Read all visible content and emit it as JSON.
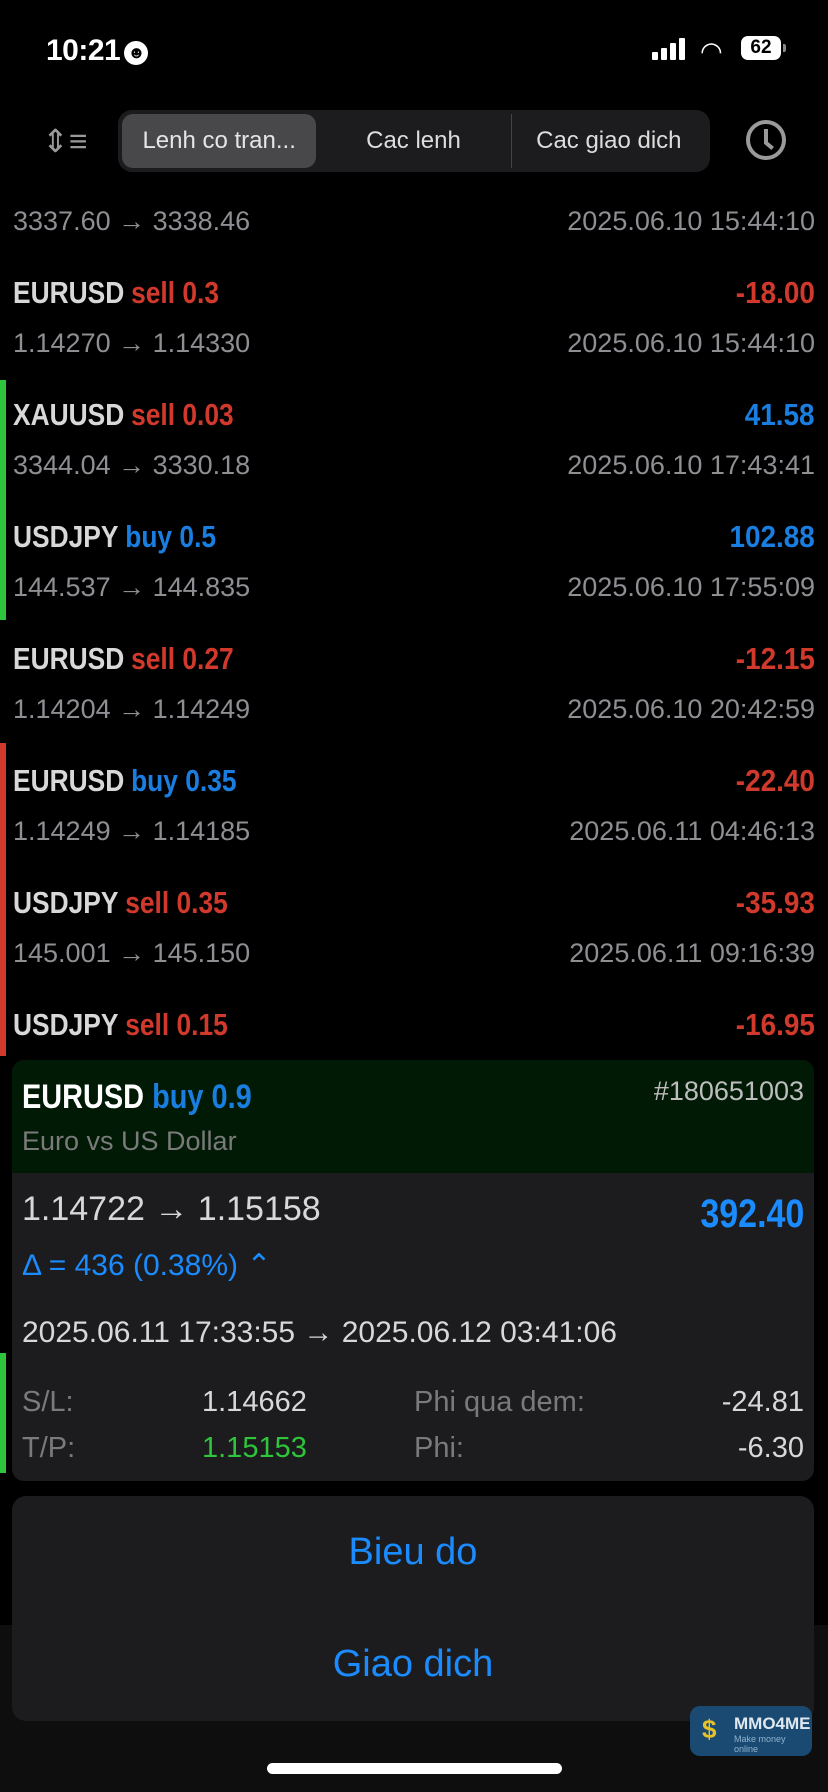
{
  "status": {
    "time": "10:21",
    "battery": "62"
  },
  "tabs": [
    {
      "label": "Lenh co tran...",
      "active": true
    },
    {
      "label": "Cac lenh"
    },
    {
      "label": "Cac giao dich"
    }
  ],
  "rows": [
    {
      "symbol": "",
      "side": "",
      "volume": "",
      "profit": "",
      "prices": "3337.60 → 3338.46",
      "time": "2025.06.10 15:44:10"
    },
    {
      "symbol": "EURUSD",
      "side": "sell",
      "volume": "0.3",
      "profit": "-18.00",
      "prices": "1.14270 → 1.14330",
      "time": "2025.06.10 15:44:10"
    },
    {
      "symbol": "XAUUSD",
      "side": "sell",
      "volume": "0.03",
      "profit": "41.58",
      "prices": "3344.04 → 3330.18",
      "time": "2025.06.10 17:43:41"
    },
    {
      "symbol": "USDJPY",
      "side": "buy",
      "volume": "0.5",
      "profit": "102.88",
      "prices": "144.537 → 144.835",
      "time": "2025.06.10 17:55:09"
    },
    {
      "symbol": "EURUSD",
      "side": "sell",
      "volume": "0.27",
      "profit": "-12.15",
      "prices": "1.14204 → 1.14249",
      "time": "2025.06.10 20:42:59"
    },
    {
      "symbol": "EURUSD",
      "side": "buy",
      "volume": "0.35",
      "profit": "-22.40",
      "prices": "1.14249 → 1.14185",
      "time": "2025.06.11 04:46:13"
    },
    {
      "symbol": "USDJPY",
      "side": "sell",
      "volume": "0.35",
      "profit": "-35.93",
      "prices": "145.001 → 145.150",
      "time": "2025.06.11 09:16:39"
    },
    {
      "symbol": "USDJPY",
      "side": "sell",
      "volume": "0.15",
      "profit": "-16.95",
      "prices": "",
      "time": ""
    }
  ],
  "detail": {
    "symbol": "EURUSD",
    "side": "buy",
    "volume": "0.9",
    "id": "#180651003",
    "description": "Euro vs US Dollar",
    "prices": "1.14722 → 1.15158",
    "profit": "392.40",
    "delta": "Δ = 436 (0.38%)",
    "times": "2025.06.11 17:33:55 → 2025.06.12 03:41:06",
    "sl_label": "S/L:",
    "sl": "1.14662",
    "tp_label": "T/P:",
    "tp": "1.15153",
    "swap_label": "Phi qua dem:",
    "swap": "-24.81",
    "fee_label": "Phi:",
    "fee": "-6.30"
  },
  "actions": [
    "Bieu do",
    "Giao dich"
  ],
  "watermark": {
    "name": "MMO4ME",
    "tagline": "Make money online"
  },
  "colors": {
    "sell": "#d0392b",
    "buy": "#1a7ee0",
    "green": "#2ec43b"
  }
}
